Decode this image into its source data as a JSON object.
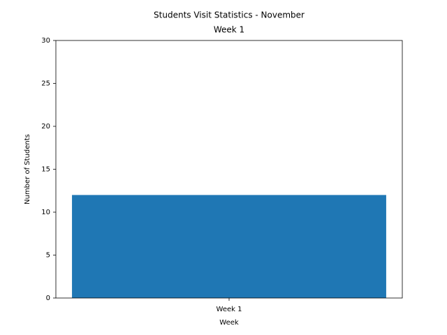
{
  "chart_data": {
    "type": "bar",
    "title": "Students Visit Statistics - November",
    "subtitle": "Week 1",
    "x_label": "Week",
    "y_label": "Number of Students",
    "categories": [
      "Week 1"
    ],
    "values": [
      12
    ],
    "color": "#1f77b4",
    "ylim": [
      0,
      30
    ],
    "yticks": [
      0,
      5,
      10,
      15,
      20,
      25,
      30
    ],
    "grid": false
  }
}
